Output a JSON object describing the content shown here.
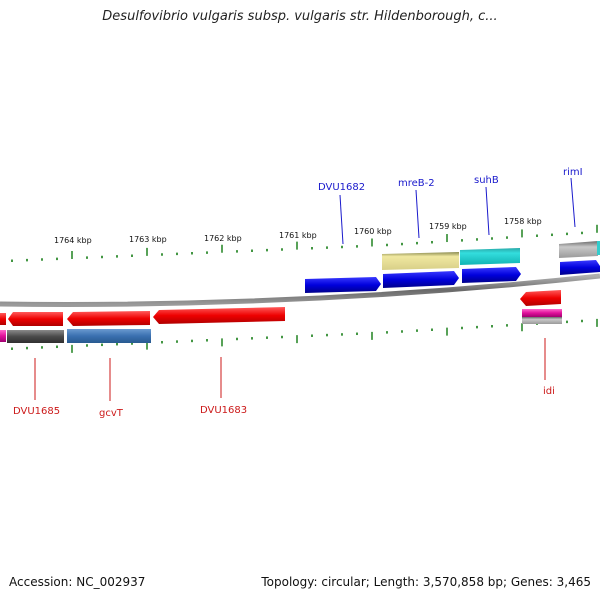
{
  "title": "Desulfovibrio vulgaris subsp. vulgaris str. Hildenborough, c...",
  "footer": {
    "accession": "Accession: NC_002937",
    "topology": "Topology: circular; Length: 3,570,858 bp; Genes: 3,465"
  },
  "colors": {
    "backbone": "#7a7a7a",
    "ticks": "#2e8b2e",
    "label_forward": "#1a1acc",
    "label_reverse": "#cc1a1a"
  },
  "scale_labels": [
    "1764 kbp",
    "1763 kbp",
    "1762 kbp",
    "1761 kbp",
    "1760 kbp",
    "1759 kbp",
    "1758 kbp"
  ],
  "gene_labels_top": [
    "DVU1682",
    "mreB-2",
    "suhB",
    "rimI"
  ],
  "gene_labels_bottom": [
    "DVU1685",
    "gcvT",
    "DVU1683",
    "idi"
  ]
}
